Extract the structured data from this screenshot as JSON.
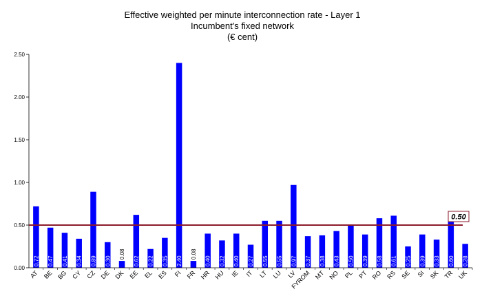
{
  "chart_data": {
    "type": "bar",
    "title_lines": [
      "Effective weighted per minute interconnection rate - Layer 1",
      "Incumbent's fixed network",
      "(€ cent)"
    ],
    "categories": [
      "AT",
      "BE",
      "BG",
      "CY",
      "CZ",
      "DE",
      "DK",
      "EE",
      "EL",
      "ES",
      "FI",
      "FR",
      "HR",
      "HU",
      "IE",
      "IT",
      "LT",
      "LU",
      "LV",
      "FYROM",
      "MT",
      "NO",
      "PL",
      "PT",
      "RO",
      "RS",
      "SE",
      "SI",
      "SK",
      "TR",
      "UK"
    ],
    "values": [
      0.72,
      0.47,
      0.41,
      0.34,
      0.89,
      0.3,
      0.08,
      0.62,
      0.22,
      0.35,
      2.4,
      0.08,
      0.4,
      0.32,
      0.4,
      0.27,
      0.55,
      0.55,
      0.97,
      0.37,
      0.38,
      0.43,
      0.5,
      0.39,
      0.58,
      0.61,
      0.25,
      0.39,
      0.33,
      0.6,
      0.28
    ],
    "value_labels": [
      "0.72",
      "0.47",
      "0.41",
      "0.34",
      "0.89",
      "0.30",
      "0.08",
      "0.62",
      "0.22",
      "0.35",
      "2.40",
      "0.08",
      "0.40",
      "0.32",
      "0.40",
      "0.27",
      "0.55",
      "0.55",
      "0.97",
      "0.37",
      "0.38",
      "0.43",
      "0.50",
      "0.39",
      "0.58",
      "0.61",
      "0.25",
      "0.39",
      "0.33",
      "0.60",
      "0.28"
    ],
    "ylim": [
      0,
      2.5
    ],
    "yticks": [
      0,
      0.5,
      1.0,
      1.5,
      2.0,
      2.5
    ],
    "ytick_labels": [
      "0.00",
      "0.50",
      "1.00",
      "1.50",
      "2.00",
      "2.50"
    ],
    "reference_line": {
      "value": 0.5,
      "label": "0.50"
    },
    "grid": false,
    "colors": {
      "bar": "#0000ff",
      "reference_line": "#8b1a2b",
      "label_inside": "#ffffff",
      "label_outside": "#000000"
    }
  }
}
